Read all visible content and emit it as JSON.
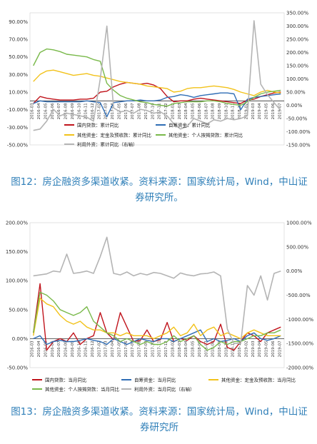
{
  "chart_data": [
    {
      "type": "line",
      "x": [
        "2016-03",
        "2016-04",
        "2016-05",
        "2016-06",
        "2016-07",
        "2016-08",
        "2016-09",
        "2016-10",
        "2016-11",
        "2016-12",
        "2017-02",
        "2017-03",
        "2017-04",
        "2017-05",
        "2017-06",
        "2017-07",
        "2017-08",
        "2017-09",
        "2017-10",
        "2017-11",
        "2017-12",
        "2018-02",
        "2018-03",
        "2018-04",
        "2018-05",
        "2018-06",
        "2018-07",
        "2018-08",
        "2018-09",
        "2018-10",
        "2018-11",
        "2018-12",
        "2019-02",
        "2019-03",
        "2019-04",
        "2019-05",
        "2019-06",
        "2019-07"
      ],
      "y_left_ticks": [
        "-50.00%",
        "-30.00%",
        "-10.00%",
        "10.00%",
        "30.00%",
        "50.00%",
        "70.00%",
        "90.00%"
      ],
      "y_right_ticks": [
        "-150.00%",
        "-100.00%",
        "-50.00%",
        "0.00%",
        "50.00%",
        "100.00%",
        "150.00%",
        "200.00%",
        "250.00%",
        "300.00%",
        "350.00%"
      ],
      "ylim_left": [
        -50,
        100
      ],
      "ylim_right": [
        -150,
        350
      ],
      "series": [
        {
          "name": "国内贷款：累计同比",
          "color": "#c0141c",
          "axis": "left",
          "values": [
            -3,
            5,
            3,
            2,
            1,
            1,
            1,
            2,
            2,
            3,
            10,
            11,
            16,
            19,
            21,
            20,
            19,
            20,
            18,
            14,
            5,
            -1,
            0,
            0,
            2,
            3,
            2,
            1,
            0,
            -1,
            -2,
            -3,
            1,
            2,
            5,
            7,
            9,
            10
          ]
        },
        {
          "name": "自筹资金：累计同比",
          "color": "#2f6db5",
          "axis": "left",
          "values": [
            -3,
            0,
            -1,
            -1,
            -1,
            -1,
            -1,
            -1,
            0,
            -1,
            -2,
            -18,
            -2,
            -1,
            0,
            0,
            1,
            0,
            0,
            1,
            4,
            5,
            7,
            6,
            4,
            6,
            7,
            8,
            9,
            9,
            8,
            -10,
            2,
            4,
            5,
            6,
            7,
            8
          ]
        },
        {
          "name": "其他资金：定金及预收款：累计同比",
          "color": "#f2c21a",
          "axis": "left",
          "values": [
            22,
            30,
            34,
            35,
            33,
            31,
            29,
            30,
            31,
            29,
            28,
            26,
            24,
            22,
            21,
            20,
            19,
            17,
            16,
            15,
            14,
            10,
            11,
            14,
            15,
            15,
            16,
            17,
            16,
            15,
            13,
            10,
            8,
            6,
            10,
            12,
            10,
            9
          ]
        },
        {
          "name": "其他资金：个人按揭贷款：累计同比",
          "color": "#79b94a",
          "axis": "left",
          "values": [
            40,
            55,
            59,
            58,
            56,
            53,
            52,
            51,
            50,
            47,
            45,
            20,
            12,
            6,
            3,
            1,
            -1,
            -2,
            -4,
            -5,
            -6,
            -3,
            -2,
            -1,
            -1,
            -1,
            0,
            0,
            -1,
            -3,
            -4,
            -5,
            -1,
            4,
            8,
            10,
            11,
            12
          ]
        },
        {
          "name": "利用外资：累计同比（右轴）",
          "color": "#b4b4b4",
          "axis": "right",
          "values": [
            -95,
            -90,
            -60,
            -15,
            -40,
            -30,
            -35,
            -40,
            -45,
            -60,
            100,
            300,
            -10,
            -25,
            -20,
            -30,
            -15,
            -20,
            -30,
            -25,
            -40,
            -70,
            -90,
            -80,
            -50,
            -60,
            -70,
            -55,
            -60,
            -50,
            -55,
            -50,
            -40,
            320,
            80,
            40,
            10,
            -20
          ]
        }
      ]
    },
    {
      "type": "line",
      "x": [
        "2016-03",
        "2016-04",
        "2016-05",
        "2016-06",
        "2016-07",
        "2016-08",
        "2016-09",
        "2016-10",
        "2016-11",
        "2016-12",
        "2017-02",
        "2017-03",
        "2017-04",
        "2017-05",
        "2017-06",
        "2017-07",
        "2017-08",
        "2017-09",
        "2017-10",
        "2017-11",
        "2017-12",
        "2018-02",
        "2018-03",
        "2018-04",
        "2018-05",
        "2018-06",
        "2018-07",
        "2018-08",
        "2018-09",
        "2018-10",
        "2018-11",
        "2018-12",
        "2019-02",
        "2019-03",
        "2019-04",
        "2019-05",
        "2019-06",
        "2019-07"
      ],
      "y_left_ticks": [
        "-50.00%",
        "0.00%",
        "50.00%",
        "100.00%",
        "150.00%",
        "200.00%"
      ],
      "y_right_ticks": [
        "-2000.00%",
        "-1500.00%",
        "-1000.00%",
        "-500.00%",
        "0.00%",
        "500.00%",
        "1000.00%"
      ],
      "ylim_left": [
        -50,
        200
      ],
      "ylim_right": [
        -2000,
        1000
      ],
      "series": [
        {
          "name": "国内贷款：当月同比",
          "color": "#c0141c",
          "axis": "left",
          "values": [
            10,
            95,
            -20,
            -5,
            0,
            -5,
            10,
            -10,
            0,
            5,
            45,
            10,
            -2,
            45,
            20,
            -5,
            -3,
            15,
            -5,
            -2,
            28,
            -5,
            0,
            -3,
            5,
            -5,
            -10,
            -5,
            25,
            -15,
            -20,
            -5,
            10,
            5,
            -5,
            10,
            15,
            20
          ]
        },
        {
          "name": "自筹资金：当月同比",
          "color": "#2f6db5",
          "axis": "left",
          "values": [
            0,
            5,
            -10,
            -5,
            -3,
            -5,
            -5,
            -3,
            0,
            -3,
            -5,
            -10,
            0,
            -5,
            -10,
            -5,
            0,
            -3,
            -5,
            0,
            0,
            -5,
            0,
            5,
            10,
            15,
            -5,
            0,
            -5,
            -3,
            0,
            -5,
            5,
            10,
            0,
            -3,
            0,
            5
          ]
        },
        {
          "name": "其他资金：定金及预收款：当月同比",
          "color": "#f2c21a",
          "axis": "left",
          "values": [
            5,
            70,
            60,
            55,
            40,
            30,
            25,
            30,
            20,
            15,
            15,
            10,
            10,
            5,
            10,
            5,
            5,
            5,
            0,
            5,
            10,
            20,
            5,
            10,
            25,
            5,
            15,
            20,
            5,
            10,
            5,
            0,
            10,
            15,
            10,
            5,
            5,
            5
          ]
        },
        {
          "name": "其他资金：个人按揭贷款：当月同比",
          "color": "#79b94a",
          "axis": "left",
          "values": [
            10,
            80,
            75,
            65,
            50,
            45,
            40,
            45,
            55,
            30,
            20,
            10,
            5,
            -5,
            0,
            -5,
            -10,
            -5,
            -10,
            -10,
            -5,
            5,
            -5,
            0,
            5,
            -10,
            -20,
            -15,
            -5,
            -10,
            -5,
            -5,
            0,
            5,
            5,
            10,
            10,
            15
          ]
        },
        {
          "name": "利用外资：当月同比（右轴）",
          "color": "#b4b4b4",
          "axis": "right",
          "values": [
            -100,
            -80,
            -60,
            0,
            -20,
            350,
            -50,
            -30,
            0,
            -50,
            300,
            700,
            -50,
            -80,
            -20,
            -100,
            -50,
            -80,
            -30,
            -50,
            -100,
            -150,
            -40,
            -80,
            -100,
            -60,
            -50,
            -20,
            -100,
            -1200,
            -1500,
            -1500,
            -300,
            -500,
            -100,
            -600,
            -50,
            0
          ]
        }
      ]
    }
  ],
  "captions": [
    "图12：房企融资多渠道收紧。资料来源：国家统计局，Wind，中山证券研究所。",
    "图13：房企融资多渠道收紧。资料来源：国家统计局，Wind，中山证券研究所"
  ]
}
